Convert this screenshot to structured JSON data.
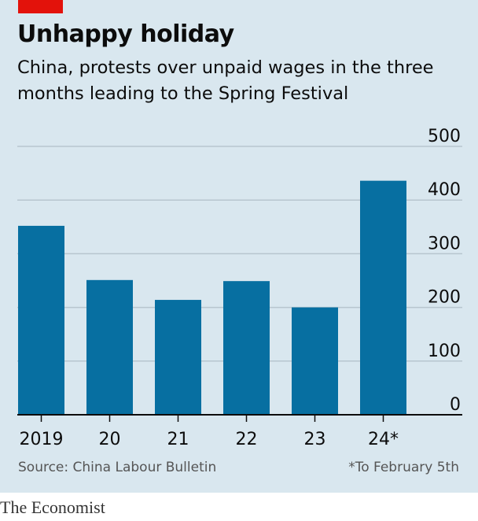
{
  "header": {
    "title": "Unhappy holiday",
    "subtitle": "China, protests over unpaid wages in the three months leading to the Spring Festival"
  },
  "chart_data": {
    "type": "bar",
    "title": "Unhappy holiday",
    "subtitle": "China, protests over unpaid wages in the three months leading to the Spring Festival",
    "categories": [
      "2019",
      "20",
      "21",
      "22",
      "23",
      "24*"
    ],
    "values": [
      352,
      251,
      214,
      249,
      200,
      436
    ],
    "ylim": [
      0,
      500
    ],
    "yticks": [
      0,
      100,
      200,
      300,
      400,
      500
    ],
    "y_axis_side": "right",
    "grid": true,
    "xlabel": "",
    "ylabel": ""
  },
  "footer": {
    "source": "Source: China Labour Bulletin",
    "note": "*To February 5th",
    "brand": "The Economist"
  },
  "colors": {
    "background": "#d9e7ef",
    "bar": "#076fa1",
    "grid": "#b7c6cf",
    "accent": "#e3120b"
  }
}
